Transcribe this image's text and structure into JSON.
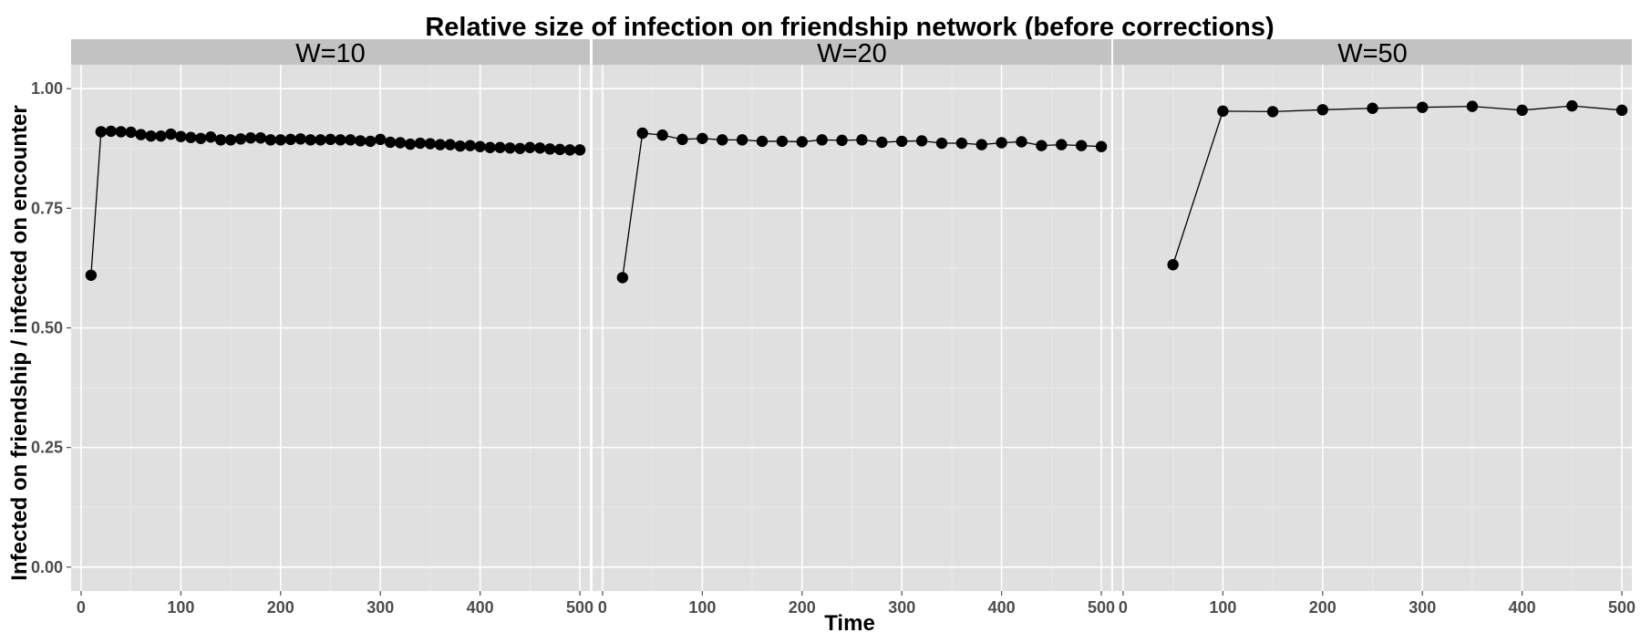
{
  "chart_data": {
    "type": "scatter",
    "title": "Relative size of infection on friendship network (before corrections)",
    "xlabel": "Time",
    "ylabel": "Infected on friendship / infected on encounter",
    "xlim": [
      -10,
      510
    ],
    "ylim": [
      -0.05,
      1.05
    ],
    "x_ticks": [
      "0",
      "100",
      "200",
      "300",
      "400",
      "500"
    ],
    "y_ticks": [
      "0.00",
      "0.25",
      "0.50",
      "0.75",
      "1.00"
    ],
    "grid": true,
    "lines_connect_points": true,
    "colors": {
      "panel_background": "#e0e0e0",
      "strip_background": "#c2c2c2",
      "grid_major": "#ffffff",
      "points": "#000000"
    },
    "panels": [
      {
        "label": "W=10",
        "x": [
          10,
          20,
          30,
          40,
          50,
          60,
          70,
          80,
          90,
          100,
          110,
          120,
          130,
          140,
          150,
          160,
          170,
          180,
          190,
          200,
          210,
          220,
          230,
          240,
          250,
          260,
          270,
          280,
          290,
          300,
          310,
          320,
          330,
          340,
          350,
          360,
          370,
          380,
          390,
          400,
          410,
          420,
          430,
          440,
          450,
          460,
          470,
          480,
          490,
          500
        ],
        "y": [
          0.61,
          0.91,
          0.911,
          0.91,
          0.909,
          0.904,
          0.901,
          0.901,
          0.905,
          0.9,
          0.898,
          0.896,
          0.899,
          0.893,
          0.893,
          0.895,
          0.897,
          0.897,
          0.893,
          0.893,
          0.894,
          0.895,
          0.893,
          0.893,
          0.894,
          0.893,
          0.893,
          0.891,
          0.89,
          0.894,
          0.888,
          0.887,
          0.884,
          0.886,
          0.885,
          0.883,
          0.883,
          0.88,
          0.881,
          0.879,
          0.877,
          0.877,
          0.876,
          0.875,
          0.877,
          0.876,
          0.874,
          0.873,
          0.872,
          0.872
        ]
      },
      {
        "label": "W=20",
        "x": [
          20,
          40,
          60,
          80,
          100,
          120,
          140,
          160,
          180,
          200,
          220,
          240,
          260,
          280,
          300,
          320,
          340,
          360,
          380,
          400,
          420,
          440,
          460,
          480,
          500
        ],
        "y": [
          0.605,
          0.907,
          0.903,
          0.894,
          0.896,
          0.893,
          0.893,
          0.89,
          0.89,
          0.889,
          0.893,
          0.892,
          0.893,
          0.888,
          0.89,
          0.891,
          0.886,
          0.886,
          0.883,
          0.887,
          0.889,
          0.881,
          0.883,
          0.881,
          0.879
        ]
      },
      {
        "label": "W=50",
        "x": [
          50,
          100,
          150,
          200,
          250,
          300,
          350,
          400,
          450,
          500
        ],
        "y": [
          0.632,
          0.953,
          0.952,
          0.956,
          0.959,
          0.961,
          0.963,
          0.955,
          0.964,
          0.955
        ]
      }
    ]
  }
}
